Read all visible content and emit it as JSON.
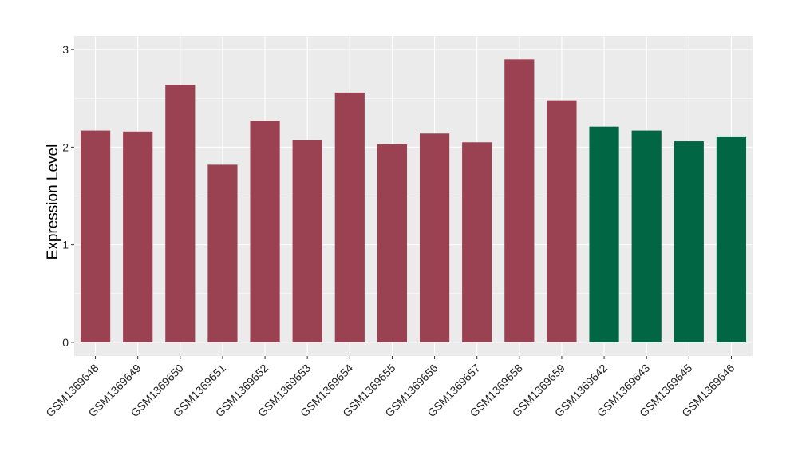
{
  "chart_data": {
    "type": "bar",
    "title": "",
    "xlabel": "",
    "ylabel": "Expression Level",
    "ylim": [
      -0.14,
      3.14
    ],
    "yticks": [
      0,
      1,
      2,
      3
    ],
    "grid": true,
    "categories": [
      "GSM1369648",
      "GSM1369649",
      "GSM1369650",
      "GSM1369651",
      "GSM1369652",
      "GSM1369653",
      "GSM1369654",
      "GSM1369655",
      "GSM1369656",
      "GSM1369657",
      "GSM1369658",
      "GSM1369659",
      "GSM1369642",
      "GSM1369643",
      "GSM1369645",
      "GSM1369646"
    ],
    "values": [
      2.17,
      2.16,
      2.64,
      1.82,
      2.27,
      2.07,
      2.56,
      2.03,
      2.14,
      2.05,
      2.9,
      2.48,
      2.21,
      2.17,
      2.06,
      2.11
    ],
    "groups": [
      0,
      0,
      0,
      0,
      0,
      0,
      0,
      0,
      0,
      0,
      0,
      0,
      1,
      1,
      1,
      1
    ],
    "colors": [
      "#9a4152",
      "#006644"
    ],
    "panel_background": "#ebebeb"
  }
}
